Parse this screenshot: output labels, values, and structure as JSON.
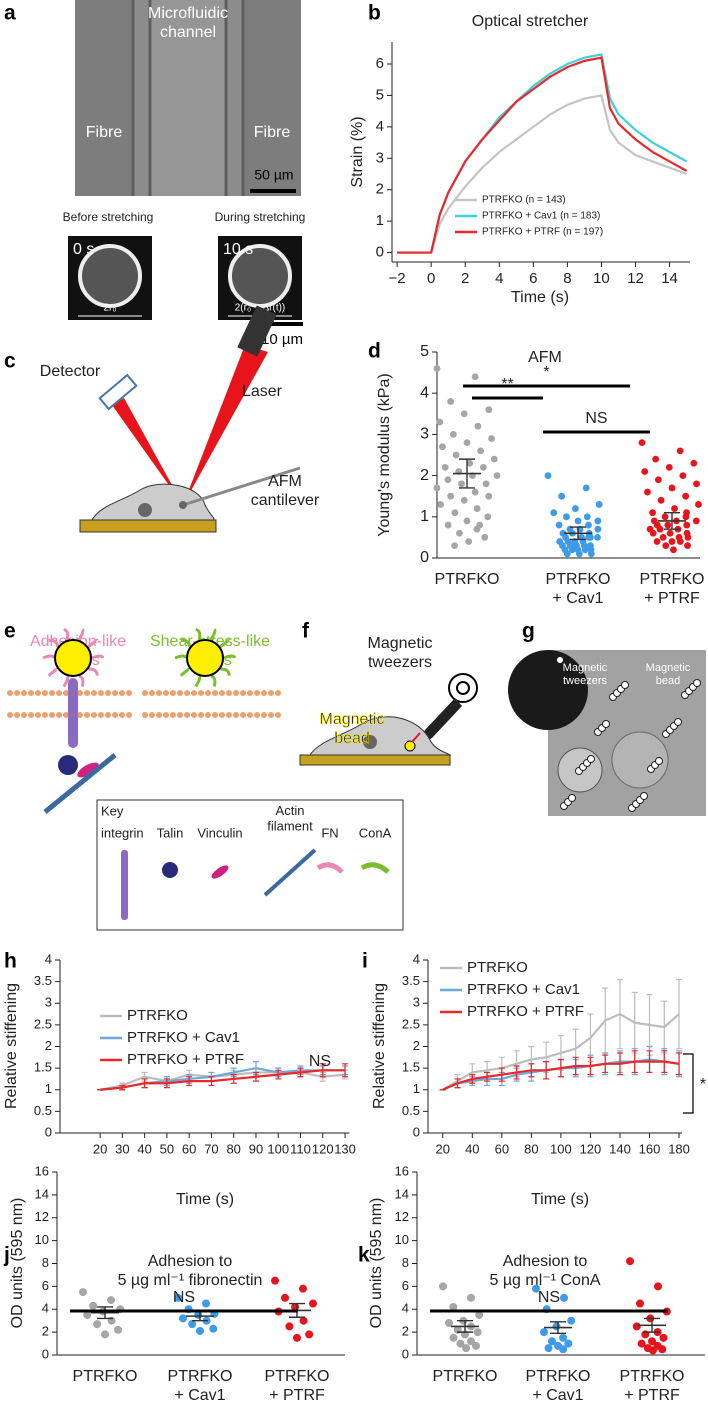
{
  "figure": {
    "letters": [
      "a",
      "b",
      "c",
      "d",
      "e",
      "f",
      "g",
      "h",
      "i",
      "j",
      "k"
    ],
    "a": {
      "channel": "Microfluidic\nchannel",
      "fibre_left": "Fibre",
      "fibre_right": "Fibre",
      "scale_50": "50 µm",
      "before": "Before stretching",
      "during": "During stretching",
      "t0": "0 s",
      "t10": "10 s",
      "r0": "2r₀",
      "r1": "2(r₀ + Δr(t))",
      "scale_10": "10 µm"
    },
    "c": {
      "detector": "Detector",
      "laser": "Laser",
      "cantilever": "AFM\ncantilever"
    },
    "e": {
      "adhesion": "Adhesion-like\nforces",
      "shear": "Shear-stress-like\nforces",
      "key": "Key",
      "integrin": "integrin",
      "talin": "Talin",
      "vinculin": "Vinculin",
      "actin": "Actin\nfilament",
      "fn": "FN",
      "cona": "ConA"
    },
    "f": {
      "tweezers": "Magnetic\ntweezers",
      "bead": "Magnetic\nbead"
    },
    "g": {
      "tweezers": "Magnetic\ntweezers",
      "bead": "Magnetic\nbead"
    }
  },
  "chart_data": [
    {
      "type": "line",
      "title": "Optical stretcher",
      "xlabel": "Time (s)",
      "ylabel": "Strain (%)",
      "x": [
        -2,
        -1,
        0,
        0.5,
        1,
        2,
        3,
        4,
        5,
        6,
        7,
        8,
        9,
        10,
        10.5,
        11,
        12,
        13,
        14,
        15
      ],
      "series": [
        {
          "name": "PTRFKO (n = 143)",
          "color": "#c4c4c4",
          "values": [
            0,
            0,
            0,
            0.9,
            1.4,
            2.1,
            2.7,
            3.2,
            3.6,
            4.0,
            4.4,
            4.7,
            4.9,
            5.0,
            3.9,
            3.5,
            3.1,
            2.9,
            2.7,
            2.5
          ]
        },
        {
          "name": "PTRFKO + Cav1 (n = 183)",
          "color": "#3fd0d8",
          "values": [
            0,
            0,
            0,
            1.2,
            1.9,
            2.9,
            3.6,
            4.3,
            4.8,
            5.3,
            5.7,
            6.0,
            6.2,
            6.3,
            4.9,
            4.4,
            3.9,
            3.5,
            3.2,
            2.9
          ]
        },
        {
          "name": "PTRFKO + PTRF (n = 197)",
          "color": "#e8282b",
          "values": [
            0,
            0,
            0,
            1.2,
            1.9,
            2.9,
            3.6,
            4.2,
            4.8,
            5.2,
            5.6,
            5.9,
            6.1,
            6.2,
            4.6,
            4.1,
            3.6,
            3.2,
            2.9,
            2.6
          ]
        }
      ],
      "xlim": [
        -2.3,
        15.2
      ],
      "xticks": [
        {
          "value": -2,
          "label": "−2"
        },
        0,
        2,
        4,
        6,
        8,
        10,
        12,
        14
      ],
      "ylim": [
        -0.3,
        6.7
      ],
      "yticks": [
        0,
        1,
        2,
        3,
        4,
        5,
        6
      ],
      "legend": "lower right"
    },
    {
      "type": "strip",
      "title": "AFM",
      "ylabel": "Young's modulus (kPa)",
      "categories": [
        "PTRFKO",
        "PTRFKO\n+ Cav1",
        "PTRFKO\n+ PTRF"
      ],
      "groups": [
        {
          "color": "#a6a6a6",
          "mean": 2.05,
          "error": 0.35,
          "values": [
            4.6,
            4.4,
            3.8,
            3.6,
            3.5,
            3.3,
            3.2,
            3.0,
            2.9,
            2.8,
            2.7,
            2.6,
            2.5,
            2.4,
            2.3,
            2.2,
            2.2,
            2.1,
            2.0,
            2.0,
            1.9,
            1.8,
            1.8,
            1.7,
            1.6,
            1.5,
            1.5,
            1.4,
            1.3,
            1.2,
            1.1,
            1.0,
            0.9,
            0.8,
            0.7,
            0.6,
            0.5,
            0.4,
            0.3,
            0.8
          ]
        },
        {
          "color": "#3d9be9",
          "mean": 0.6,
          "error": 0.15,
          "values": [
            2.0,
            1.7,
            1.5,
            1.3,
            1.2,
            1.1,
            1.0,
            1.0,
            0.9,
            0.9,
            0.8,
            0.8,
            0.7,
            0.7,
            0.7,
            0.6,
            0.6,
            0.6,
            0.5,
            0.5,
            0.5,
            0.5,
            0.4,
            0.4,
            0.4,
            0.4,
            0.3,
            0.3,
            0.3,
            0.3,
            0.3,
            0.2,
            0.2,
            0.2,
            0.2,
            0.2,
            0.1,
            0.1,
            0.1,
            0.5
          ]
        },
        {
          "color": "#e8141c",
          "mean": 0.9,
          "error": 0.2,
          "values": [
            2.8,
            2.6,
            2.4,
            2.3,
            2.2,
            2.1,
            2.0,
            1.9,
            1.8,
            1.7,
            1.6,
            1.5,
            1.4,
            1.3,
            1.2,
            1.1,
            1.0,
            1.0,
            0.9,
            0.9,
            0.8,
            0.8,
            0.8,
            0.7,
            0.7,
            0.7,
            0.6,
            0.6,
            0.6,
            0.5,
            0.5,
            0.5,
            0.4,
            0.4,
            0.4,
            0.3,
            0.3,
            0.2,
            0.9,
            1.1
          ]
        }
      ],
      "ylim": [
        0,
        5
      ],
      "yticks": [
        0,
        1,
        2,
        3,
        4,
        5
      ],
      "annotations": [
        "**",
        "NS",
        "*"
      ]
    },
    {
      "type": "line",
      "xlabel": "Time (s)",
      "ylabel": "Relative stiffening",
      "x": [
        20,
        30,
        40,
        50,
        60,
        70,
        80,
        90,
        100,
        110,
        120,
        130
      ],
      "series": [
        {
          "name": "PTRFKO",
          "color": "#bdbdbd",
          "values": [
            1,
            1.1,
            1.3,
            1.2,
            1.35,
            1.3,
            1.35,
            1.4,
            1.4,
            1.4,
            1.3,
            1.35
          ],
          "errors": [
            0,
            0.05,
            0.1,
            0.1,
            0.1,
            0.1,
            0.1,
            0.1,
            0.1,
            0.1,
            0.1,
            0.1
          ]
        },
        {
          "name": "PTRFKO + Cav1",
          "color": "#6fa8dc",
          "values": [
            1,
            1.05,
            1.15,
            1.2,
            1.25,
            1.3,
            1.4,
            1.5,
            1.4,
            1.45,
            1.45,
            1.45
          ],
          "errors": [
            0,
            0.05,
            0.1,
            0.1,
            0.1,
            0.1,
            0.1,
            0.15,
            0.1,
            0.1,
            0.1,
            0.1
          ]
        },
        {
          "name": "PTRFKO + PTRF",
          "color": "#e8282b",
          "values": [
            1,
            1.05,
            1.15,
            1.15,
            1.2,
            1.2,
            1.25,
            1.3,
            1.35,
            1.4,
            1.45,
            1.45
          ],
          "errors": [
            0,
            0.05,
            0.1,
            0.1,
            0.1,
            0.1,
            0.1,
            0.1,
            0.1,
            0.1,
            0.15,
            0.15
          ]
        }
      ],
      "xlim": [
        2,
        132
      ],
      "xticks": [
        20,
        30,
        40,
        50,
        60,
        70,
        80,
        90,
        100,
        110,
        120,
        130
      ],
      "ylim": [
        0,
        4
      ],
      "yticks": [
        0,
        0.5,
        1,
        1.5,
        2,
        2.5,
        3,
        3.5,
        4
      ],
      "annotations": [
        "NS"
      ],
      "legend": "upper left"
    },
    {
      "type": "line",
      "xlabel": "Time (s)",
      "ylabel": "Relative stiffening",
      "x": [
        20,
        30,
        40,
        50,
        60,
        70,
        80,
        90,
        100,
        110,
        120,
        130,
        140,
        150,
        160,
        170,
        180
      ],
      "series": [
        {
          "name": "PTRFKO",
          "color": "#bdbdbd",
          "values": [
            1,
            1.2,
            1.4,
            1.45,
            1.5,
            1.6,
            1.7,
            1.75,
            1.85,
            1.95,
            2.2,
            2.6,
            2.75,
            2.55,
            2.5,
            2.45,
            2.75
          ],
          "errors": [
            0,
            0.15,
            0.2,
            0.2,
            0.25,
            0.3,
            0.3,
            0.35,
            0.4,
            0.45,
            0.55,
            0.75,
            0.8,
            0.7,
            0.7,
            0.6,
            0.8
          ]
        },
        {
          "name": "PTRFKO + Cav1",
          "color": "#6fa8dc",
          "values": [
            1,
            1.15,
            1.2,
            1.25,
            1.25,
            1.35,
            1.4,
            1.45,
            1.5,
            1.5,
            1.55,
            1.6,
            1.65,
            1.65,
            1.7,
            1.65,
            1.6
          ],
          "errors": [
            0,
            0.1,
            0.1,
            0.15,
            0.15,
            0.15,
            0.2,
            0.2,
            0.2,
            0.2,
            0.25,
            0.25,
            0.25,
            0.3,
            0.3,
            0.3,
            0.3
          ]
        },
        {
          "name": "PTRFKO + PTRF",
          "color": "#e8282b",
          "values": [
            1,
            1.15,
            1.25,
            1.3,
            1.35,
            1.4,
            1.45,
            1.45,
            1.5,
            1.55,
            1.55,
            1.6,
            1.6,
            1.65,
            1.65,
            1.65,
            1.6
          ],
          "errors": [
            0,
            0.1,
            0.1,
            0.1,
            0.15,
            0.15,
            0.15,
            0.2,
            0.2,
            0.2,
            0.2,
            0.2,
            0.25,
            0.25,
            0.25,
            0.25,
            0.25
          ]
        }
      ],
      "xlim": [
        10,
        182
      ],
      "xticks": [
        20,
        40,
        60,
        80,
        100,
        120,
        140,
        160,
        180
      ],
      "ylim": [
        0,
        4
      ],
      "yticks": [
        0,
        0.5,
        1,
        1.5,
        2,
        2.5,
        3,
        3.5,
        4
      ],
      "annotations": [
        "*"
      ],
      "legend": "upper left"
    },
    {
      "type": "strip",
      "title": "Adhesion to\n5 µg ml⁻¹ fibronectin",
      "ylabel": "OD units (595 nm)",
      "categories": [
        "PTRFKO",
        "PTRFKO\n+ Cav1",
        "PTRFKO\n+ PTRF"
      ],
      "groups": [
        {
          "color": "#a6a6a6",
          "mean": 3.7,
          "error": 0.5,
          "values": [
            5.5,
            4.8,
            4.3,
            4.0,
            3.8,
            3.5,
            3.0,
            2.7,
            2.2,
            1.8
          ]
        },
        {
          "color": "#3d9be9",
          "mean": 3.4,
          "error": 0.4,
          "values": [
            5.0,
            4.5,
            4.0,
            3.6,
            3.5,
            3.2,
            3.0,
            2.7,
            2.3,
            2.1
          ]
        },
        {
          "color": "#e8141c",
          "mean": 3.9,
          "error": 0.6,
          "values": [
            6.5,
            5.8,
            5.0,
            4.5,
            4.2,
            3.8,
            3.0,
            2.5,
            1.8,
            1.5
          ]
        }
      ],
      "ylim": [
        0,
        16
      ],
      "yticks": [
        0,
        2,
        4,
        6,
        8,
        10,
        12,
        14,
        16
      ],
      "annotations": [
        "NS"
      ]
    },
    {
      "type": "strip",
      "title": "Adhesion to\n5 µg ml⁻¹ ConA",
      "ylabel": "OD units (595 nm)",
      "categories": [
        "PTRFKO",
        "PTRFKO\n+ Cav1",
        "PTRFKO\n+ PTRF"
      ],
      "groups": [
        {
          "color": "#a6a6a6",
          "mean": 2.5,
          "error": 0.5,
          "values": [
            6.0,
            5.0,
            4.2,
            3.5,
            3.0,
            2.8,
            2.5,
            2.2,
            2.0,
            1.8,
            1.5,
            1.2,
            1.0,
            0.8,
            0.6
          ]
        },
        {
          "color": "#3d9be9",
          "mean": 2.4,
          "error": 0.5,
          "values": [
            5.8,
            5.0,
            4.0,
            3.0,
            2.5,
            2.0,
            1.5,
            1.2,
            1.0,
            0.8,
            0.6,
            0.5
          ]
        },
        {
          "color": "#e8141c",
          "mean": 2.6,
          "error": 0.6,
          "values": [
            8.2,
            6.0,
            4.5,
            3.8,
            3.2,
            2.5,
            2.0,
            1.8,
            1.5,
            1.2,
            1.0,
            0.8,
            0.6,
            0.5,
            0.4
          ]
        }
      ],
      "ylim": [
        0,
        16
      ],
      "yticks": [
        0,
        2,
        4,
        6,
        8,
        10,
        12,
        14,
        16
      ],
      "annotations": [
        "NS"
      ]
    }
  ]
}
